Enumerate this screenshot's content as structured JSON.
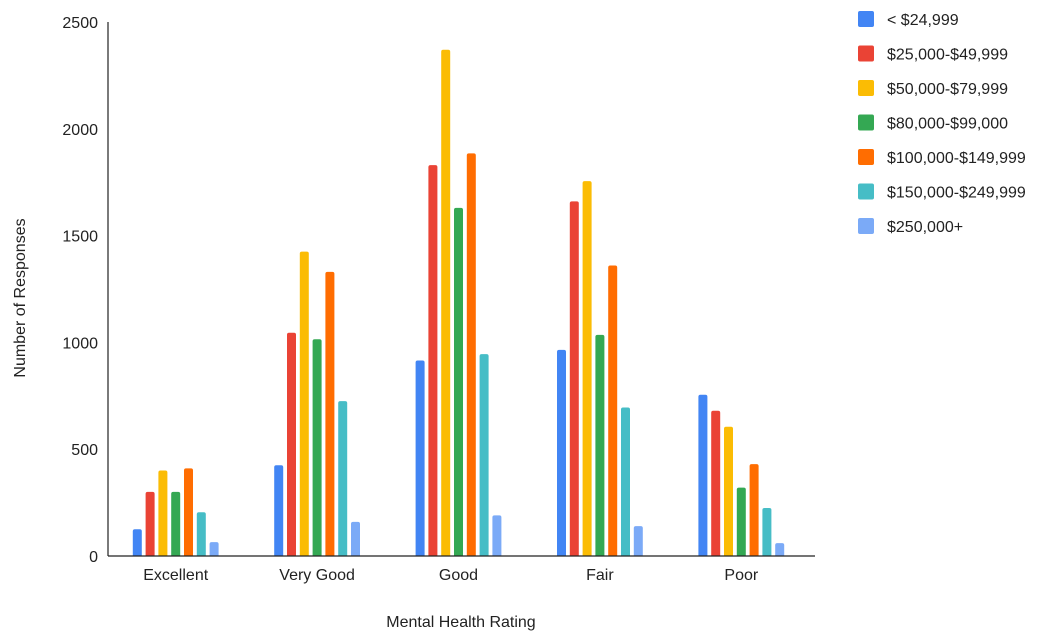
{
  "chart_data": {
    "type": "bar",
    "title": "",
    "xlabel": "Mental Health Rating",
    "ylabel": "Number of Responses",
    "ylim": [
      0,
      2500
    ],
    "yticks": [
      0,
      500,
      1000,
      1500,
      2000,
      2500
    ],
    "ytick_labels": [
      "0",
      "500",
      "1000",
      "1500",
      "2000",
      "2500"
    ],
    "grid": false,
    "legend_position": "top-right",
    "categories": [
      "Excellent",
      "Very Good",
      "Good",
      "Fair",
      "Poor"
    ],
    "series": [
      {
        "name": "< $24,999",
        "color": "#4285F4",
        "values": [
          125,
          425,
          915,
          965,
          755
        ]
      },
      {
        "name": "$25,000-$49,999",
        "color": "#EA4335",
        "values": [
          300,
          1045,
          1830,
          1660,
          680
        ]
      },
      {
        "name": "$50,000-$79,999",
        "color": "#FBBC04",
        "values": [
          400,
          1425,
          2370,
          1755,
          605
        ]
      },
      {
        "name": "$80,000-$99,000",
        "color": "#34A853",
        "values": [
          300,
          1015,
          1630,
          1035,
          320
        ]
      },
      {
        "name": "$100,000-$149,999",
        "color": "#FF6D01",
        "values": [
          410,
          1330,
          1885,
          1360,
          430
        ]
      },
      {
        "name": "$150,000-$249,999",
        "color": "#46BDC6",
        "values": [
          205,
          725,
          945,
          695,
          225
        ]
      },
      {
        "name": "$250,000+",
        "color": "#7BAAF7",
        "values": [
          65,
          160,
          190,
          140,
          60
        ]
      }
    ]
  }
}
